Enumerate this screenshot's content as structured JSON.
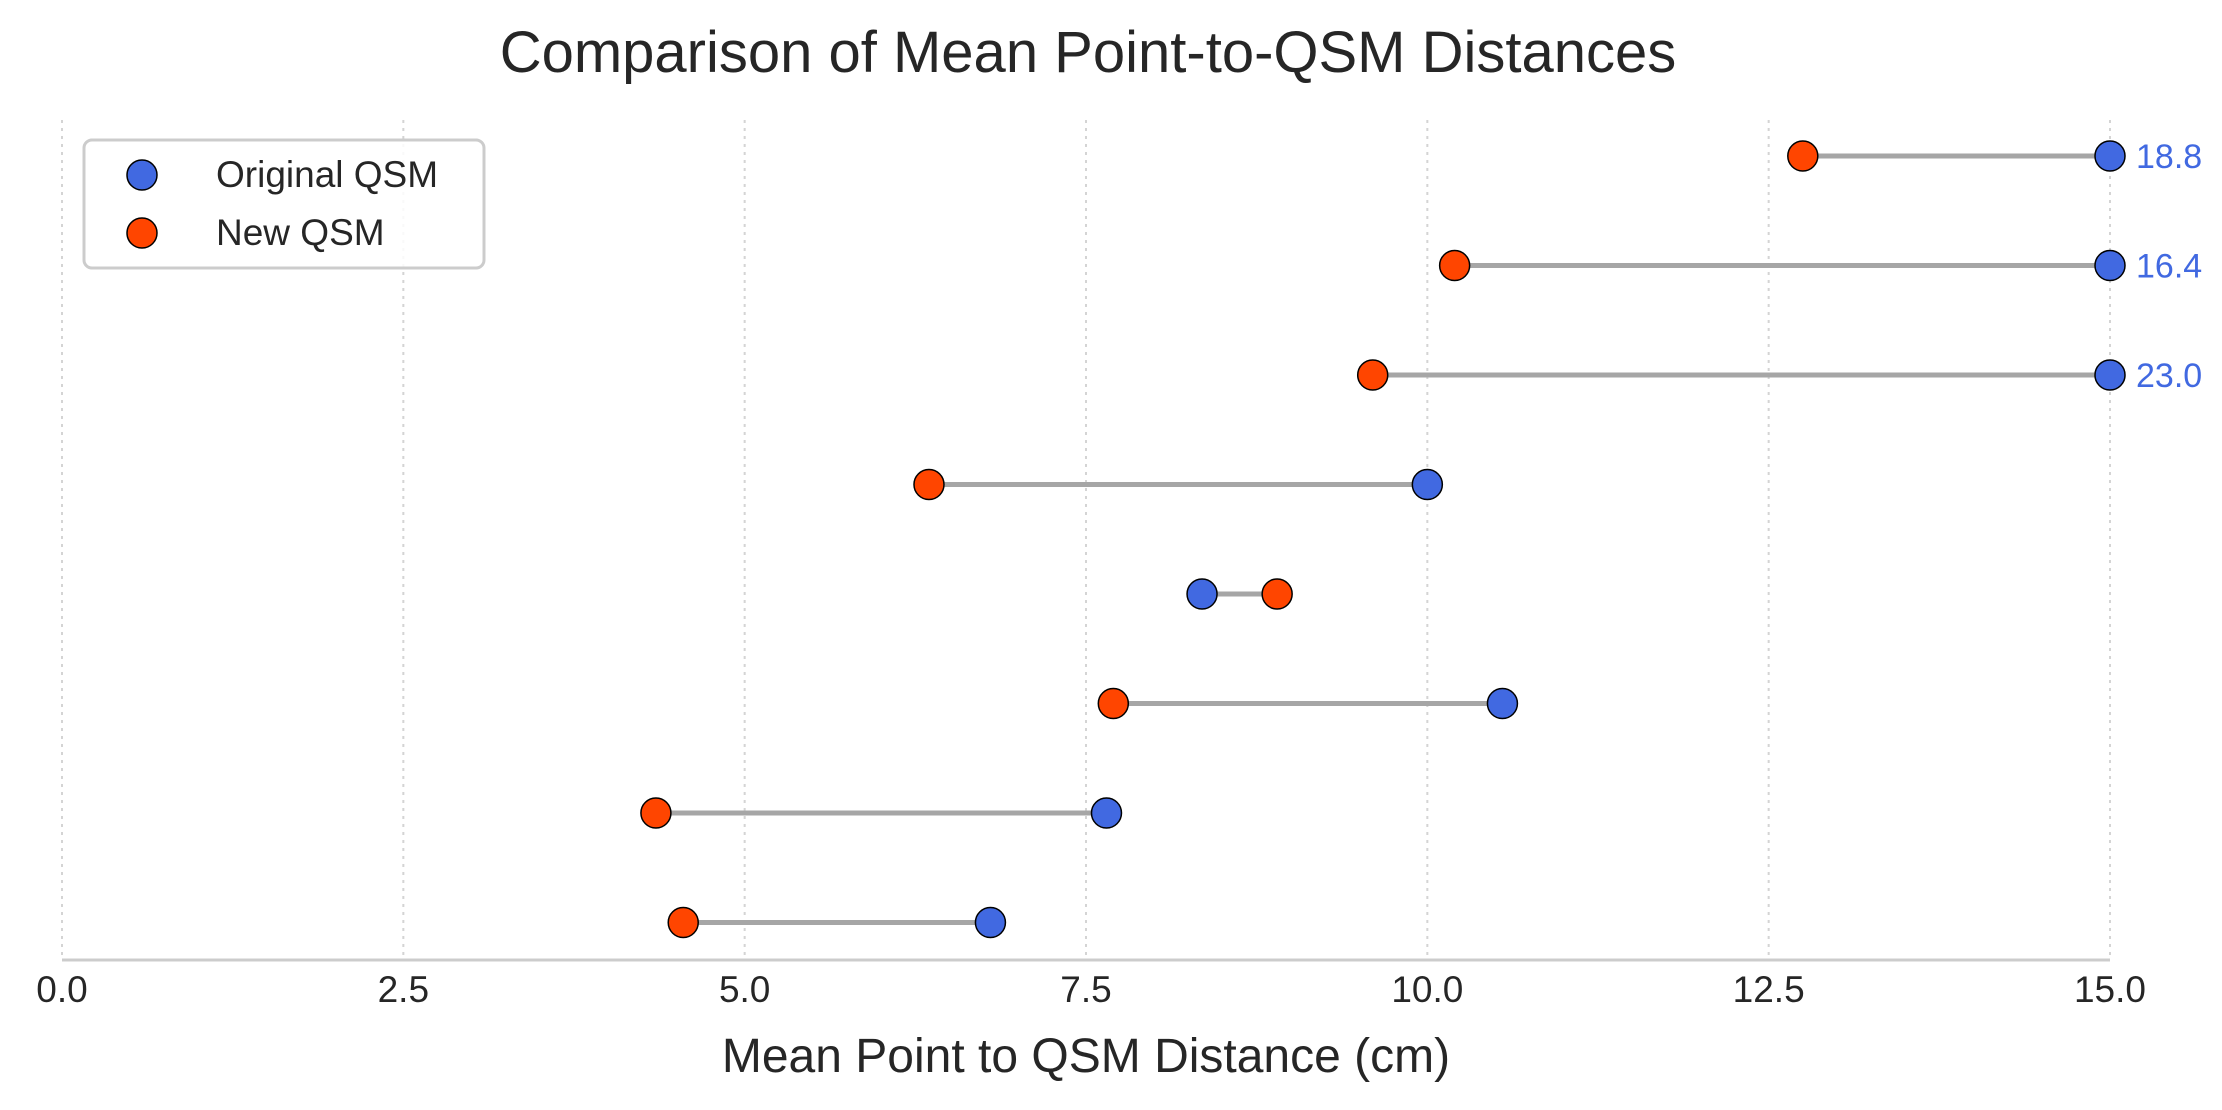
{
  "chart_data": {
    "type": "scatter",
    "subtype": "dumbbell",
    "title": "Comparison of Mean Point-to-QSM Distances",
    "xlabel": "Mean Point to QSM Distance (cm)",
    "ylabel": "",
    "xlim": [
      0,
      15
    ],
    "x_ticks": [
      "0.0",
      "2.5",
      "5.0",
      "7.5",
      "10.0",
      "12.5",
      "15.0"
    ],
    "grid": {
      "x": true,
      "y": false,
      "style": "dotted"
    },
    "legend": {
      "placement": "top-left"
    },
    "connector_color": "#a6a6a6",
    "series": [
      {
        "name": "Original QSM",
        "color": "#4169e1",
        "values": [
          18.8,
          16.4,
          23.0,
          10.0,
          8.35,
          10.55,
          7.65,
          6.8
        ]
      },
      {
        "name": "New QSM",
        "color": "#ff4500",
        "values": [
          12.75,
          10.2,
          9.6,
          6.35,
          8.9,
          7.7,
          4.35,
          4.55
        ]
      }
    ],
    "annotations": [
      "18.8",
      "16.4",
      "23.0"
    ]
  }
}
